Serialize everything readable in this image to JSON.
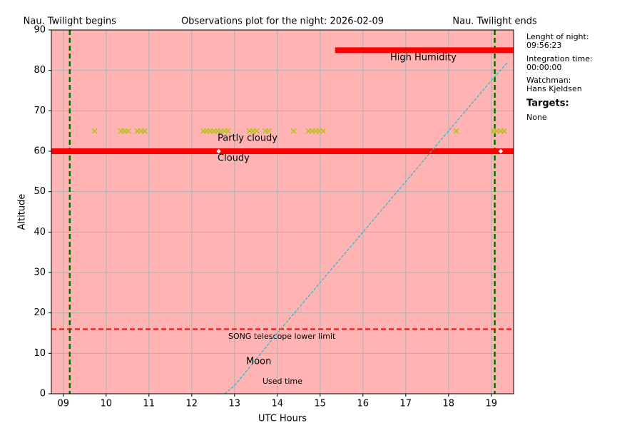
{
  "chart_data": {
    "type": "line",
    "title": "Observations plot for the night: 2026-02-09",
    "xlabel": "UTC Hours",
    "ylabel": "Altitude",
    "xlim": [
      8.72,
      19.52
    ],
    "ylim": [
      0,
      90
    ],
    "xticks": [
      {
        "value": 9,
        "label": "09"
      },
      10,
      11,
      12,
      13,
      14,
      15,
      16,
      17,
      18,
      19
    ],
    "yticks": [
      0,
      10,
      20,
      30,
      40,
      50,
      60,
      70,
      80,
      90
    ],
    "grid": true,
    "background": "#ffb3b3",
    "twilight": {
      "color": "#007000",
      "lines": [
        {
          "label": "Nau. Twilight begins",
          "x": 9.15
        },
        {
          "label": "Nau. Twilight ends",
          "x": 19.08
        }
      ]
    },
    "series": [
      {
        "name": "Cloudy",
        "color": "#ff0000",
        "style": "thick",
        "x": [
          8.72,
          19.52
        ],
        "values": [
          60,
          60
        ]
      },
      {
        "name": "High Humidity",
        "color": "#ff0000",
        "style": "thick",
        "x": [
          15.35,
          19.52
        ],
        "values": [
          85,
          85
        ]
      },
      {
        "name": "SONG telescope lower limit",
        "color": "#ff0000",
        "style": "dashed",
        "x": [
          8.72,
          19.52
        ],
        "values": [
          16,
          16
        ]
      },
      {
        "name": "Moon",
        "color": "#17becf",
        "style": "thin-dashed",
        "x": [
          12.77,
          13,
          14,
          15,
          16,
          17,
          18,
          19,
          19.38
        ],
        "values": [
          0,
          2,
          15,
          27.5,
          40,
          52.5,
          65,
          77.5,
          82
        ]
      },
      {
        "name": "Partly cloudy",
        "color": "#bcbd22",
        "style": "x-markers",
        "x": [
          9.73,
          10.35,
          10.43,
          10.52,
          10.73,
          10.82,
          10.9,
          12.27,
          12.35,
          12.43,
          12.52,
          12.6,
          12.68,
          12.77,
          12.85,
          13.35,
          13.43,
          13.52,
          13.72,
          13.8,
          14.38,
          14.73,
          14.82,
          14.9,
          14.98,
          15.07,
          18.18,
          19.05,
          19.13,
          19.22,
          19.3
        ],
        "values": [
          65,
          65,
          65,
          65,
          65,
          65,
          65,
          65,
          65,
          65,
          65,
          65,
          65,
          65,
          65,
          65,
          65,
          65,
          65,
          65,
          65,
          65,
          65,
          65,
          65,
          65,
          65,
          65,
          65,
          65,
          65
        ]
      },
      {
        "color": "#ffffff",
        "style": "diamonds",
        "x": [
          12.63,
          19.22
        ],
        "values": [
          60,
          60
        ]
      }
    ],
    "used_time_label": "Used time"
  },
  "side_panel": {
    "info": [
      {
        "label": "Lenght of night:",
        "value": "09:56:23"
      },
      {
        "label": "Integration time:",
        "value": "00:00:00"
      },
      {
        "label": "Watchman:",
        "value": "Hans Kjeldsen"
      }
    ],
    "targets_heading": "Targets:",
    "targets": "None"
  }
}
